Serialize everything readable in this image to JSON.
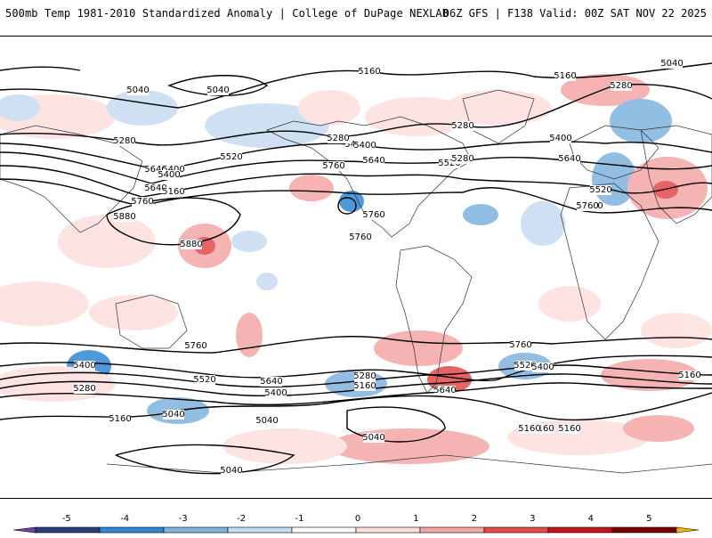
{
  "header": {
    "title_left": "500mb Temp 1981-2010 Standardized Anomaly | College of DuPage NEXLAB",
    "title_right": "06Z GFS | F138 Valid: 00Z SAT NOV 22 2025"
  },
  "colorbar": {
    "ticks": [
      "-5",
      "-4",
      "-3",
      "-2",
      "-1",
      "0",
      "1",
      "2",
      "3",
      "4",
      "5"
    ],
    "colors": [
      "#6f3fb0",
      "#2a3e7a",
      "#2f88d6",
      "#7fb3e0",
      "#c6dbef",
      "#ffffff",
      "#fde0dd",
      "#f4a6a6",
      "#e34a4a",
      "#c2161d",
      "#7a0000",
      "#f5b800"
    ]
  },
  "map": {
    "contour_labels": [
      "5040",
      "5040",
      "5160",
      "5160",
      "5280",
      "5040",
      "5280",
      "5400",
      "5640",
      "5280",
      "5520",
      "5280",
      "5400",
      "5400",
      "5640",
      "5760",
      "5880",
      "5160",
      "5400",
      "5520",
      "5640",
      "5760",
      "5760",
      "5520",
      "5760",
      "5880",
      "5760",
      "5640",
      "5400",
      "5280",
      "5760",
      "5640",
      "5520",
      "5400",
      "5160",
      "5280",
      "5040",
      "5160",
      "5400",
      "5760",
      "5520",
      "5400",
      "5280",
      "5160",
      "5040",
      "5640",
      "5160",
      "5040",
      "5760",
      "5160",
      "5160",
      "5040"
    ]
  }
}
